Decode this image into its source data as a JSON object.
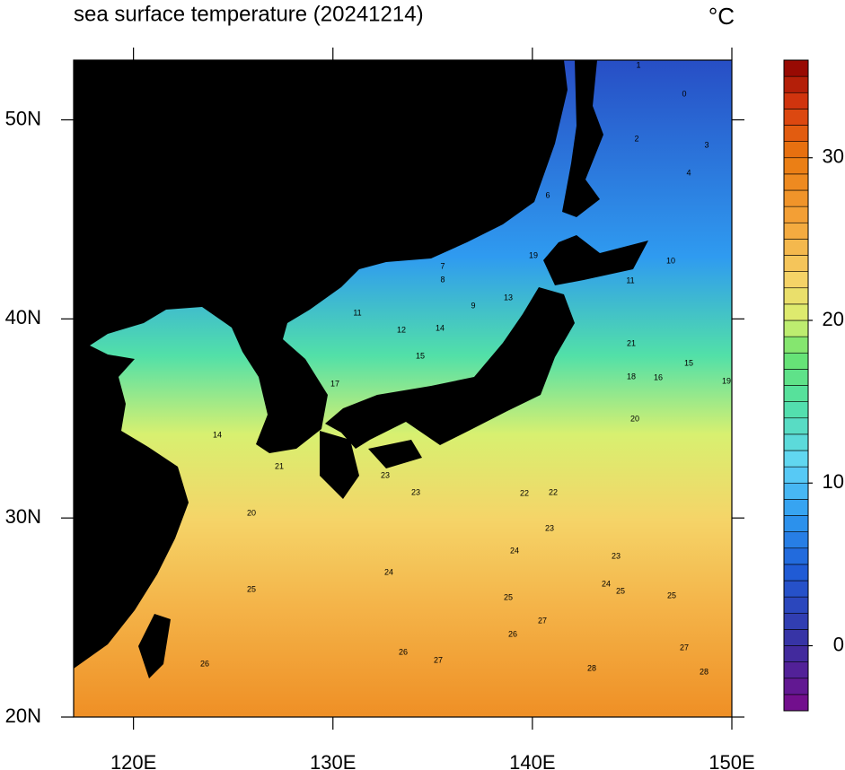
{
  "title": "sea surface temperature (20241214)",
  "unit": "°C",
  "map": {
    "lonlim": [
      117,
      150
    ],
    "latlim": [
      20,
      53
    ],
    "lon_ticks": [
      {
        "value": 120,
        "label": "120E"
      },
      {
        "value": 130,
        "label": "130E"
      },
      {
        "value": 140,
        "label": "140E"
      },
      {
        "value": 150,
        "label": "150E"
      }
    ],
    "lat_ticks": [
      {
        "value": 20,
        "label": "20N"
      },
      {
        "value": 30,
        "label": "30N"
      },
      {
        "value": 40,
        "label": "40N"
      },
      {
        "value": 50,
        "label": "50N"
      }
    ]
  },
  "colorbar": {
    "range": [
      -4,
      36
    ],
    "ticks": [
      0,
      10,
      20,
      30
    ]
  },
  "contour_labels": [
    0,
    1,
    2,
    3,
    4,
    4,
    5,
    6,
    7,
    8,
    9,
    10,
    11,
    11,
    12,
    13,
    14,
    14,
    15,
    15,
    16,
    17,
    18,
    19,
    19,
    20,
    20,
    21,
    21,
    22,
    22,
    23,
    23,
    23,
    23,
    24,
    24,
    24,
    25,
    25,
    25,
    25,
    26,
    26,
    26,
    27,
    27,
    27,
    28,
    28
  ]
}
